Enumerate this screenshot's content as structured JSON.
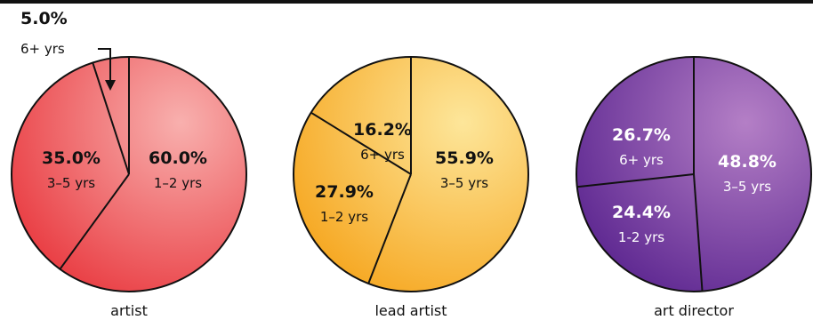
{
  "chart_data": [
    {
      "type": "pie",
      "label": "artist",
      "slices": [
        {
          "name": "1–2 yrs",
          "value": 60.0,
          "label": "60.0%"
        },
        {
          "name": "3–5 yrs",
          "value": 35.0,
          "label": "35.0%"
        },
        {
          "name": "6+ yrs",
          "value": 5.0,
          "label": "5.0%"
        }
      ]
    },
    {
      "type": "pie",
      "label": "lead artist",
      "slices": [
        {
          "name": "3–5 yrs",
          "value": 55.9,
          "label": "55.9%"
        },
        {
          "name": "1–2 yrs",
          "value": 27.9,
          "label": "27.9%"
        },
        {
          "name": "6+ yrs",
          "value": 16.2,
          "label": "16.2%"
        }
      ]
    },
    {
      "type": "pie",
      "label": "art director",
      "slices": [
        {
          "name": "3–5 yrs",
          "value": 48.8,
          "label": "48.8%"
        },
        {
          "name": "1-2 yrs",
          "value": 24.4,
          "label": "24.4%"
        },
        {
          "name": "6+ yrs",
          "value": 26.7,
          "label": "26.7%"
        }
      ]
    }
  ],
  "colors": {
    "top_bar": "#111111",
    "artist": "#f0595e",
    "lead_artist": "#f7b12b",
    "art_director": "#7d3aa0",
    "line": "#111111"
  }
}
